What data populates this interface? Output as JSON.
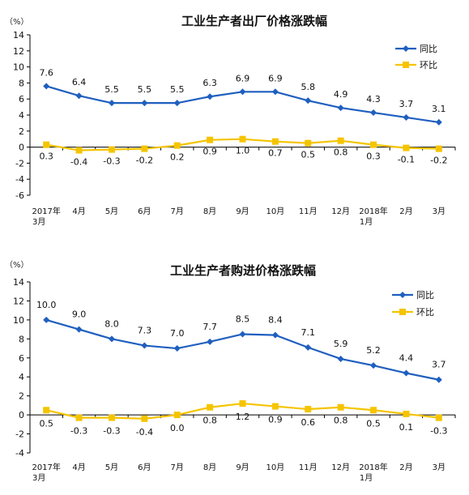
{
  "chart_data": [
    {
      "type": "line",
      "title": "工业生产者出厂价格涨跌幅",
      "unit": "（%）",
      "categories": [
        [
          "2017年",
          "3月"
        ],
        [
          "4月"
        ],
        [
          "5月"
        ],
        [
          "6月"
        ],
        [
          "7月"
        ],
        [
          "8月"
        ],
        [
          "9月"
        ],
        [
          "10月"
        ],
        [
          "11月"
        ],
        [
          "12月"
        ],
        [
          "2018年",
          "1月"
        ],
        [
          "2月"
        ],
        [
          "3月"
        ]
      ],
      "ylim": [
        -6,
        14
      ],
      "yticks": [
        -6,
        -4,
        -2,
        0,
        2,
        4,
        6,
        8,
        10,
        12,
        14
      ],
      "legend_position": "top-right",
      "series": [
        {
          "name": "同比",
          "color": "#1f5fbf",
          "marker": "diamond",
          "values": [
            7.6,
            6.4,
            5.5,
            5.5,
            5.5,
            6.3,
            6.9,
            6.9,
            5.8,
            4.9,
            4.3,
            3.7,
            3.1
          ],
          "labels": [
            "7.6",
            "6.4",
            "5.5",
            "5.5",
            "5.5",
            "6.3",
            "6.9",
            "6.9",
            "5.8",
            "4.9",
            "4.3",
            "3.7",
            "3.1"
          ]
        },
        {
          "name": "环比",
          "color": "#f5c400",
          "marker": "square",
          "values": [
            0.3,
            -0.4,
            -0.3,
            -0.2,
            0.2,
            0.9,
            1.0,
            0.7,
            0.5,
            0.8,
            0.3,
            -0.1,
            -0.2
          ],
          "labels": [
            "0.3",
            "-0.4",
            "-0.3",
            "-0.2",
            "0.2",
            "0.9",
            "1.0",
            "0.7",
            "0.5",
            "0.8",
            "0.3",
            "-0.1",
            "-0.2"
          ]
        }
      ]
    },
    {
      "type": "line",
      "title": "工业生产者购进价格涨跌幅",
      "unit": "（%）",
      "categories": [
        [
          "2017年",
          "3月"
        ],
        [
          "4月"
        ],
        [
          "5月"
        ],
        [
          "6月"
        ],
        [
          "7月"
        ],
        [
          "8月"
        ],
        [
          "9月"
        ],
        [
          "10月"
        ],
        [
          "11月"
        ],
        [
          "12月"
        ],
        [
          "2018年",
          "1月"
        ],
        [
          "2月"
        ],
        [
          "3月"
        ]
      ],
      "ylim": [
        -4,
        14
      ],
      "yticks": [
        -4,
        -2,
        0,
        2,
        4,
        6,
        8,
        10,
        12,
        14
      ],
      "legend_position": "top-right",
      "series": [
        {
          "name": "同比",
          "color": "#1f5fbf",
          "marker": "diamond",
          "values": [
            10.0,
            9.0,
            8.0,
            7.3,
            7.0,
            7.7,
            8.5,
            8.4,
            7.1,
            5.9,
            5.2,
            4.4,
            3.7
          ],
          "labels": [
            "10.0",
            "9.0",
            "8.0",
            "7.3",
            "7.0",
            "7.7",
            "8.5",
            "8.4",
            "7.1",
            "5.9",
            "5.2",
            "4.4",
            "3.7"
          ]
        },
        {
          "name": "环比",
          "color": "#f5c400",
          "marker": "square",
          "values": [
            0.5,
            -0.3,
            -0.3,
            -0.4,
            0.0,
            0.8,
            1.2,
            0.9,
            0.6,
            0.8,
            0.5,
            0.1,
            -0.3
          ],
          "labels": [
            "0.5",
            "-0.3",
            "-0.3",
            "-0.4",
            "0.0",
            "0.8",
            "1.2",
            "0.9",
            "0.6",
            "0.8",
            "0.5",
            "0.1",
            "-0.3"
          ]
        }
      ]
    }
  ]
}
